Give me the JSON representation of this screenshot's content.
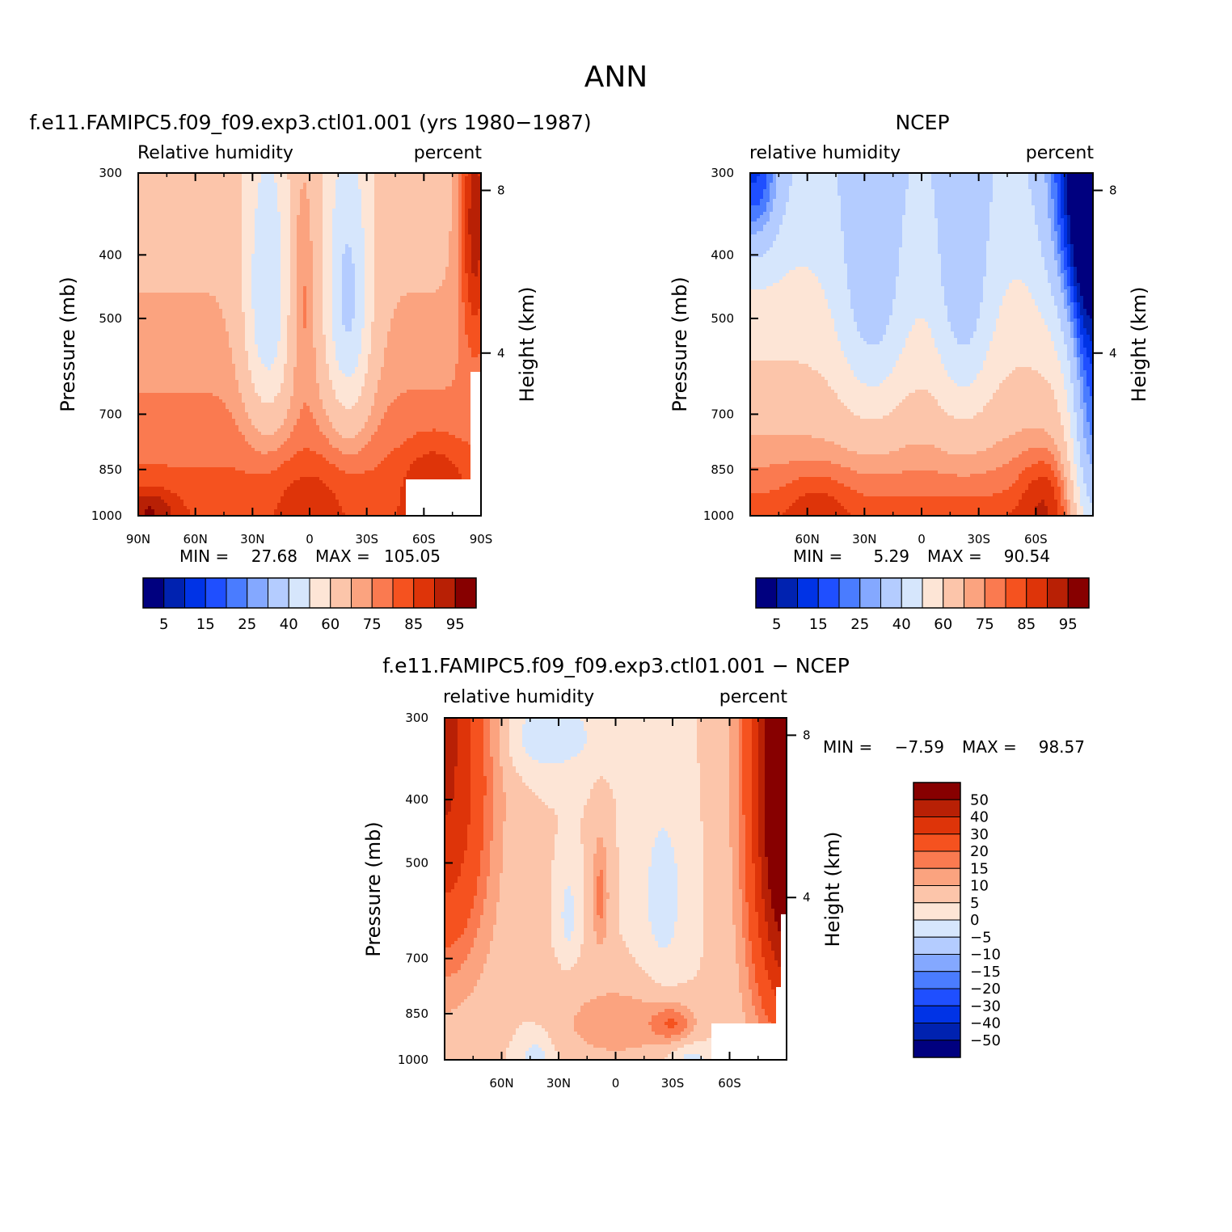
{
  "figure_title": "ANN",
  "colors": {
    "full": [
      "#00007f",
      "#0022b0",
      "#0033e6",
      "#1f4fff",
      "#4a7cff",
      "#84a8ff",
      "#b4ccff",
      "#d6e6fc",
      "#fde5d6",
      "#fcc5aa",
      "#fba37f",
      "#fa7a50",
      "#f5521f",
      "#de3409",
      "#b82005",
      "#870000"
    ],
    "diff": [
      "#00007f",
      "#0022b0",
      "#0033e6",
      "#1f4fff",
      "#4a7cff",
      "#84a8ff",
      "#b4ccff",
      "#d6e6fc",
      "#fde5d6",
      "#fcc5aa",
      "#fba37f",
      "#fa7a50",
      "#f5521f",
      "#de3409",
      "#b82005",
      "#870000"
    ]
  },
  "chart_data": [
    {
      "type": "heatmap",
      "title": "f.e11.FAMIPC5.f09_f09.exp3.ctl01.001 (yrs 1980−1987)",
      "subtitle_left": "Relative humidity",
      "subtitle_right": "percent",
      "ylabel": "Pressure (mb)",
      "y2label": "Height (km)",
      "x_ticks": [
        "90N",
        "60N",
        "30N",
        "0",
        "30S",
        "60S",
        "90S"
      ],
      "x_values": [
        90,
        60,
        30,
        0,
        -30,
        -60,
        -90
      ],
      "xlim": [
        90,
        -90
      ],
      "y_ticks": [
        "300",
        "400",
        "500",
        "700",
        "850",
        "1000"
      ],
      "y_values": [
        300,
        400,
        500,
        700,
        850,
        1000
      ],
      "ylim": [
        1000,
        300
      ],
      "y2_ticks": [
        "8",
        "4"
      ],
      "y2_values": [
        8,
        4
      ],
      "min_label": "MIN =",
      "min_value": "27.68",
      "max_label": "MAX =",
      "max_value": "105.05",
      "colorbar_labels": [
        "5",
        "15",
        "25",
        "40",
        "60",
        "75",
        "85",
        "95"
      ],
      "colorbar_levels": [
        5,
        10,
        15,
        20,
        25,
        30,
        40,
        50,
        60,
        70,
        75,
        80,
        85,
        90,
        95
      ],
      "pattern": "model"
    },
    {
      "type": "heatmap",
      "title": "NCEP",
      "subtitle_left": "relative humidity",
      "subtitle_right": "percent",
      "ylabel": "Pressure (mb)",
      "y2label": "Height (km)",
      "x_ticks": [
        "60N",
        "30N",
        "0",
        "30S",
        "60S"
      ],
      "x_values": [
        60,
        30,
        0,
        -30,
        -60
      ],
      "xlim": [
        90,
        -90
      ],
      "y_ticks": [
        "300",
        "400",
        "500",
        "700",
        "850",
        "1000"
      ],
      "y_values": [
        300,
        400,
        500,
        700,
        850,
        1000
      ],
      "ylim": [
        1000,
        300
      ],
      "y2_ticks": [
        "8",
        "4"
      ],
      "y2_values": [
        8,
        4
      ],
      "min_label": "MIN =",
      "min_value": "5.29",
      "max_label": "MAX =",
      "max_value": "90.54",
      "colorbar_labels": [
        "5",
        "15",
        "25",
        "40",
        "60",
        "75",
        "85",
        "95"
      ],
      "colorbar_levels": [
        5,
        10,
        15,
        20,
        25,
        30,
        40,
        50,
        60,
        70,
        75,
        80,
        85,
        90,
        95
      ],
      "pattern": "obs"
    },
    {
      "type": "heatmap",
      "title": "f.e11.FAMIPC5.f09_f09.exp3.ctl01.001 − NCEP",
      "subtitle_left": "relative humidity",
      "subtitle_right": "percent",
      "ylabel": "Pressure (mb)",
      "y2label": "Height (km)",
      "x_ticks": [
        "60N",
        "30N",
        "0",
        "30S",
        "60S"
      ],
      "x_values": [
        60,
        30,
        0,
        -30,
        -60
      ],
      "xlim": [
        90,
        -90
      ],
      "y_ticks": [
        "300",
        "400",
        "500",
        "700",
        "850",
        "1000"
      ],
      "y_values": [
        300,
        400,
        500,
        700,
        850,
        1000
      ],
      "ylim": [
        1000,
        300
      ],
      "y2_ticks": [
        "8",
        "4"
      ],
      "y2_values": [
        8,
        4
      ],
      "min_label": "MIN =",
      "min_value": "−7.59",
      "max_label": "MAX =",
      "max_value": "98.57",
      "colorbar_labels": [
        "50",
        "40",
        "30",
        "20",
        "15",
        "10",
        "5",
        "0",
        "−5",
        "−10",
        "−15",
        "−20",
        "−30",
        "−40",
        "−50"
      ],
      "colorbar_levels": [
        -50,
        -40,
        -30,
        -20,
        -15,
        -10,
        -5,
        0,
        5,
        10,
        15,
        20,
        30,
        40,
        50
      ],
      "pattern": "diff"
    }
  ]
}
